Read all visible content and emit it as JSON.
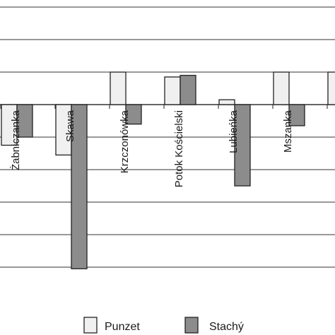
{
  "chart_data": {
    "type": "bar",
    "categories": [
      "Żabniczanka",
      "Skawa",
      "Krzczonówka",
      "Potok Kościelski",
      "Lubieńka",
      "Mszanka",
      ""
    ],
    "series": [
      {
        "name": "Punzet",
        "values": [
          -1.25,
          -1.55,
          1.0,
          0.85,
          0.15,
          1.0,
          1.0
        ],
        "color": "#f0f0f0"
      },
      {
        "name": "Stachý",
        "values": [
          -1.0,
          -5.05,
          -0.6,
          0.9,
          -2.5,
          -0.65,
          null
        ],
        "color": "#8c8c8c"
      }
    ],
    "ylim": [
      -5.8,
      3.15
    ],
    "gridlines": [
      3,
      2,
      1,
      0,
      -1,
      -2,
      -3,
      -4,
      -5
    ],
    "grid": true,
    "legend": "bottom"
  }
}
